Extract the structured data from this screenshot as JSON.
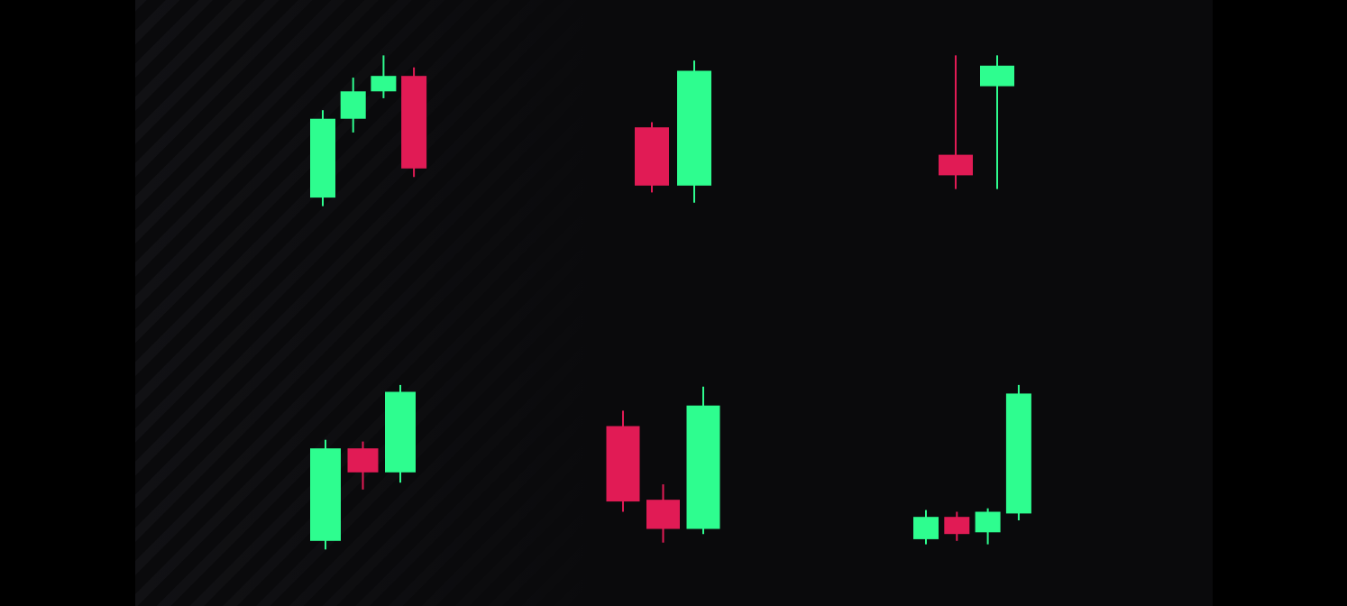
{
  "chart_data": [
    {
      "type": "candlestick",
      "ylim": [
        0,
        100
      ],
      "up_color": "#2efd8f",
      "down_color": "#e11b55",
      "open": [
        11,
        57,
        73,
        82
      ],
      "high": [
        62,
        81,
        94,
        87
      ],
      "low": [
        6,
        49,
        69,
        23
      ],
      "close": [
        57,
        73,
        82,
        28
      ]
    },
    {
      "type": "candlestick",
      "ylim": [
        0,
        100
      ],
      "up_color": "#2efd8f",
      "down_color": "#e11b55",
      "open": [
        52,
        18
      ],
      "high": [
        55,
        91
      ],
      "low": [
        14,
        8
      ],
      "close": [
        18,
        85
      ]
    },
    {
      "type": "candlestick",
      "ylim": [
        0,
        100
      ],
      "up_color": "#2efd8f",
      "down_color": "#e11b55",
      "open": [
        36,
        76
      ],
      "high": [
        94,
        94
      ],
      "low": [
        16,
        16
      ],
      "close": [
        24,
        88
      ]
    },
    {
      "type": "candlestick",
      "ylim": [
        0,
        100
      ],
      "up_color": "#2efd8f",
      "down_color": "#e11b55",
      "open": [
        8,
        62,
        48
      ],
      "high": [
        67,
        66,
        99
      ],
      "low": [
        3,
        38,
        42
      ],
      "close": [
        62,
        48,
        95
      ]
    },
    {
      "type": "candlestick",
      "ylim": [
        0,
        100
      ],
      "up_color": "#2efd8f",
      "down_color": "#e11b55",
      "open": [
        75,
        32,
        15
      ],
      "high": [
        84,
        41,
        98
      ],
      "low": [
        25,
        7,
        12
      ],
      "close": [
        31,
        15,
        87
      ]
    },
    {
      "type": "candlestick",
      "ylim": [
        0,
        100
      ],
      "up_color": "#2efd8f",
      "down_color": "#e11b55",
      "open": [
        9,
        22,
        13,
        24
      ],
      "high": [
        26,
        25,
        27,
        99
      ],
      "low": [
        6,
        8,
        6,
        20
      ],
      "close": [
        22,
        12,
        25,
        94
      ]
    }
  ]
}
